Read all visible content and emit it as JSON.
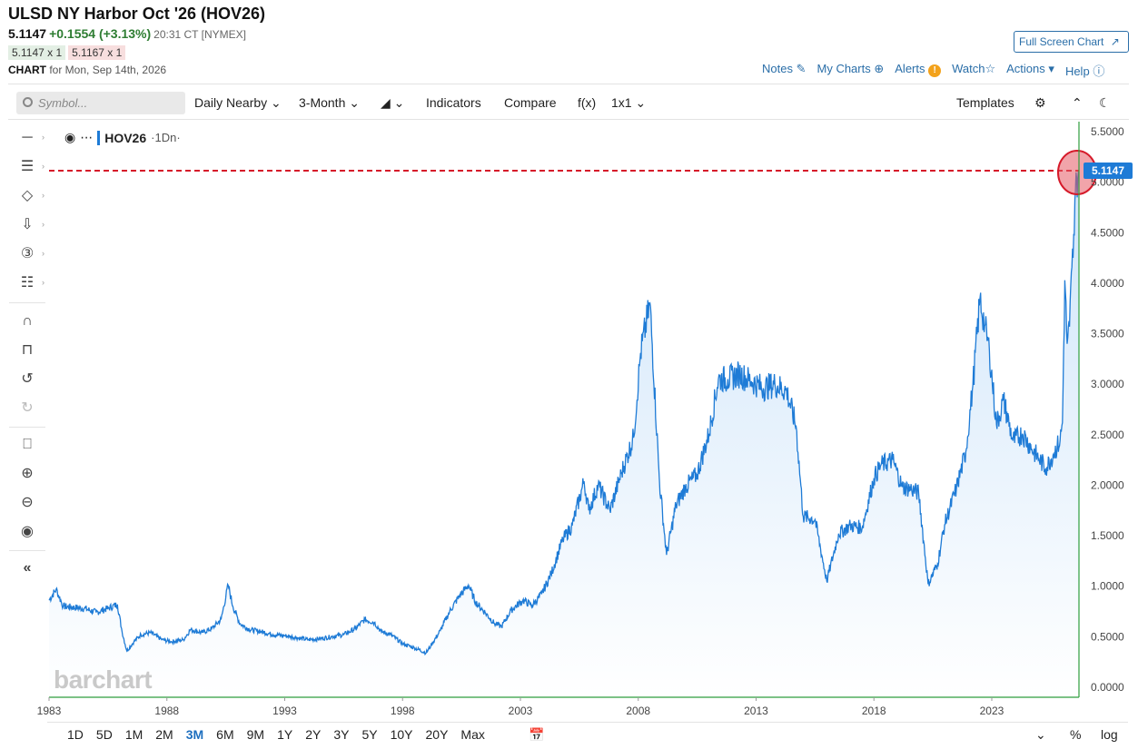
{
  "header": {
    "title": "ULSD NY Harbor Oct '26 (HOV26)",
    "last": "5.1147",
    "change": "+0.1554 (+3.13%)",
    "time": "20:31 CT [NYMEX]",
    "bid": "5.1147 x 1",
    "ask": "5.1167 x 1",
    "chart_label": "CHART",
    "chart_date": "for Mon, Sep 14th, 2026",
    "fullscreen": "Full Screen Chart"
  },
  "toplinks": {
    "notes": "Notes",
    "mycharts": "My Charts",
    "alerts": "Alerts",
    "alert_badge": "!",
    "watch": "Watch",
    "actions": "Actions",
    "help": "Help"
  },
  "toolbar": {
    "search_placeholder": "Symbol...",
    "frequency": "Daily Nearby",
    "period": "3-Month",
    "indicators": "Indicators",
    "compare": "Compare",
    "fx": "f(x)",
    "layout": "1x1",
    "templates": "Templates"
  },
  "legend": {
    "symbol": "HOV26",
    "period": "·1Dn·"
  },
  "watermark": "barchart",
  "bottom": {
    "ranges": [
      "1D",
      "5D",
      "1M",
      "2M",
      "3M",
      "6M",
      "9M",
      "1Y",
      "2Y",
      "3Y",
      "5Y",
      "10Y",
      "20Y",
      "Max"
    ],
    "active": "3M",
    "pct": "%",
    "log": "log"
  },
  "colors": {
    "line": "#1e7bd6",
    "area": "#e3f0fc",
    "ref_line": "#d61a2a",
    "axis": "#2e9e3e",
    "label_bg": "#1e7bd6",
    "active_range": "#1e6fbf"
  },
  "chart_data": {
    "type": "area",
    "title": "ULSD NY Harbor Oct '26 (HOV26)",
    "xlabel": "",
    "ylabel": "",
    "xlim": [
      1983.0,
      2026.7
    ],
    "ylim": [
      -0.1,
      5.6
    ],
    "x_ticks": [
      "1983",
      "1988",
      "1993",
      "1998",
      "2003",
      "2008",
      "2013",
      "2018",
      "2023"
    ],
    "y_ticks": [
      "5.5000",
      "5.0000",
      "4.5000",
      "4.0000",
      "3.5000",
      "3.0000",
      "2.5000",
      "2.0000",
      "1.5000",
      "1.0000",
      "0.5000",
      "0.0000"
    ],
    "last_value": 5.1147,
    "last_label": "5.1147",
    "grid": false,
    "series": [
      {
        "x": [
          1983.0,
          1983.3,
          1983.6,
          1984.0,
          1984.5,
          1985.0,
          1985.5,
          1985.9,
          1986.1,
          1986.3,
          1986.6,
          1986.9,
          1987.3,
          1987.8,
          1988.2,
          1988.7,
          1989.0,
          1989.5,
          1989.9,
          1990.3,
          1990.6,
          1990.8,
          1991.1,
          1991.5,
          1992.0,
          1992.5,
          1993.0,
          1993.5,
          1994.0,
          1994.5,
          1995.0,
          1995.5,
          1996.0,
          1996.4,
          1996.8,
          1997.1,
          1997.5,
          1998.0,
          1998.5,
          1999.0,
          1999.2,
          1999.6,
          2000.0,
          2000.4,
          2000.8,
          2001.1,
          2001.5,
          2001.9,
          2002.2,
          2002.6,
          2003.1,
          2003.5,
          2003.9,
          2004.3,
          2004.8,
          2005.2,
          2005.7,
          2005.9,
          2006.3,
          2006.8,
          2007.3,
          2007.8,
          2008.1,
          2008.5,
          2008.9,
          2009.2,
          2009.6,
          2010.0,
          2010.5,
          2011.0,
          2011.4,
          2011.8,
          2012.3,
          2012.8,
          2013.3,
          2013.8,
          2014.3,
          2014.7,
          2015.0,
          2015.5,
          2016.0,
          2016.5,
          2017.0,
          2017.5,
          2018.0,
          2018.3,
          2018.8,
          2019.2,
          2019.6,
          2019.9,
          2020.3,
          2020.7,
          2021.0,
          2021.5,
          2021.9,
          2022.2,
          2022.5,
          2022.7,
          2022.9,
          2023.2,
          2023.5,
          2023.9,
          2024.3,
          2024.7,
          2025.0,
          2025.3,
          2025.6,
          2025.9,
          2026.0,
          2026.1,
          2026.2,
          2026.3,
          2026.4,
          2026.5,
          2026.55,
          2026.6,
          2026.7
        ],
        "y": [
          0.86,
          0.97,
          0.8,
          0.79,
          0.78,
          0.74,
          0.78,
          0.82,
          0.55,
          0.36,
          0.45,
          0.52,
          0.54,
          0.47,
          0.45,
          0.47,
          0.57,
          0.54,
          0.58,
          0.67,
          1.01,
          0.8,
          0.63,
          0.57,
          0.55,
          0.52,
          0.51,
          0.49,
          0.47,
          0.48,
          0.5,
          0.52,
          0.58,
          0.67,
          0.64,
          0.55,
          0.52,
          0.43,
          0.39,
          0.34,
          0.41,
          0.56,
          0.75,
          0.9,
          1.01,
          0.84,
          0.74,
          0.63,
          0.6,
          0.76,
          0.86,
          0.81,
          0.92,
          1.12,
          1.46,
          1.6,
          2.04,
          1.75,
          2.0,
          1.75,
          2.13,
          2.47,
          3.31,
          3.8,
          2.04,
          1.31,
          1.8,
          1.98,
          2.11,
          2.51,
          3.05,
          3.05,
          3.1,
          3.03,
          2.96,
          3.0,
          2.93,
          2.58,
          1.69,
          1.66,
          1.05,
          1.52,
          1.6,
          1.58,
          2.07,
          2.2,
          2.25,
          1.98,
          1.96,
          1.92,
          1.02,
          1.22,
          1.61,
          1.97,
          2.33,
          2.99,
          3.85,
          3.58,
          3.33,
          2.6,
          2.84,
          2.44,
          2.51,
          2.36,
          2.26,
          2.17,
          2.3,
          2.44,
          2.62,
          4.03,
          3.4,
          3.57,
          4.16,
          4.48,
          4.91,
          5.05,
          5.1147
        ]
      }
    ]
  }
}
